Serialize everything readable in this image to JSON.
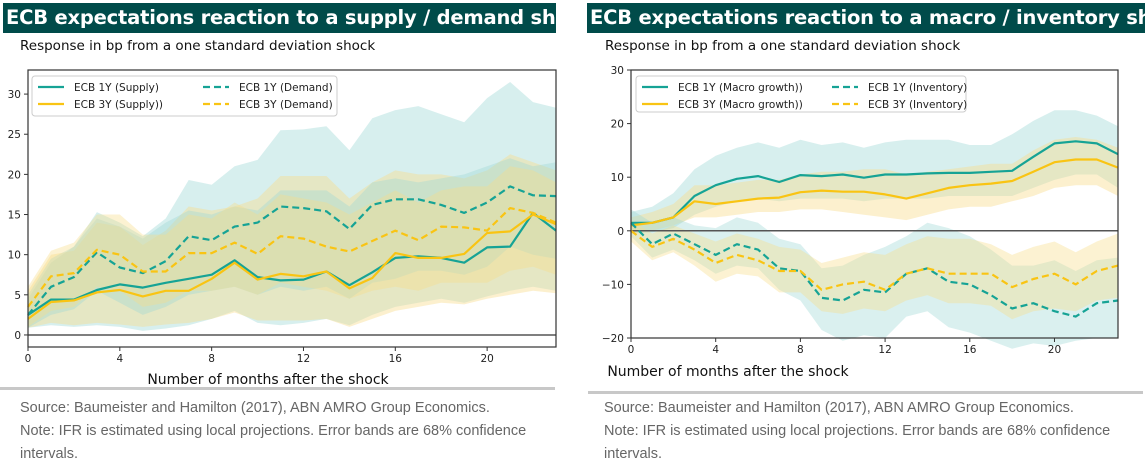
{
  "colors": {
    "header_bg": "#004b4a",
    "teal": "#16a395",
    "yellow": "#f9c413",
    "teal_band": "#9fd8d6",
    "yellow_band": "#f7dc8a",
    "footer_text": "#666666"
  },
  "left": {
    "title": "ECB expectations reaction to a supply / demand shock",
    "subtitle": "Response in bp from a one standard deviation shock",
    "source": "Source: Baumeister and Hamilton (2017), ABN AMRO Group Economics.",
    "note": "Note: IFR is estimated using local projections. Error bands are 68% confidence intervals."
  },
  "right": {
    "title": "ECB expectations reaction to a macro / inventory shock",
    "subtitle": "Response in bp from a one standard deviation shock",
    "source": "Source: Baumeister and Hamilton (2017), ABN AMRO Group Economics.",
    "note": "Note: IFR is estimated using local projections. Error bands are 68% confidence intervals."
  },
  "chart_data": [
    {
      "type": "line",
      "title": "ECB expectations reaction to a supply / demand shock",
      "subtitle": "Response in bp from a one standard deviation shock",
      "xlabel": "Number of months after the shock",
      "ylabel": "",
      "xlim": [
        0,
        23
      ],
      "ylim": [
        -1.5,
        33
      ],
      "xticks": [
        0,
        4,
        8,
        12,
        16,
        20
      ],
      "yticks": [
        0,
        5,
        10,
        15,
        20,
        25,
        30
      ],
      "legend_position": "top-left",
      "legend_columns": 2,
      "grid": false,
      "zero_line": true,
      "x": [
        0,
        1,
        2,
        3,
        4,
        5,
        6,
        7,
        8,
        9,
        10,
        11,
        12,
        13,
        14,
        15,
        16,
        17,
        18,
        19,
        20,
        21,
        22,
        23
      ],
      "series": [
        {
          "name": "ECB 1Y (Supply)",
          "color": "teal",
          "style": "solid",
          "values": [
            2.5,
            4.4,
            4.4,
            5.6,
            6.3,
            5.9,
            6.5,
            7.0,
            7.5,
            9.3,
            7.2,
            6.8,
            6.9,
            7.9,
            6.2,
            7.8,
            9.6,
            9.8,
            9.6,
            9.0,
            10.9,
            11.0,
            15.2,
            13.0
          ],
          "band_lower": [
            0.9,
            1.2,
            1.0,
            1.2,
            1.0,
            0.5,
            0.8,
            1.2,
            2.0,
            3.0,
            1.5,
            1.2,
            1.5,
            2.0,
            1.2,
            2.5,
            3.5,
            4.0,
            4.5,
            4.0,
            4.8,
            5.5,
            6.0,
            5.5
          ],
          "band_upper": [
            4.5,
            9.0,
            11.0,
            15.3,
            14.0,
            12.3,
            14.5,
            19.3,
            18.7,
            21.0,
            21.8,
            25.5,
            25.6,
            26.0,
            23.0,
            27.0,
            28.0,
            28.5,
            27.5,
            26.5,
            29.5,
            31.5,
            29.0,
            28.3
          ]
        },
        {
          "name": "ECB 3Y (Supply))",
          "color": "yellow",
          "style": "solid",
          "values": [
            2.0,
            4.1,
            4.3,
            5.3,
            5.6,
            4.8,
            5.5,
            5.5,
            7.0,
            9.0,
            6.9,
            7.6,
            7.3,
            7.9,
            5.8,
            7.1,
            10.2,
            9.6,
            9.6,
            10.1,
            12.7,
            12.9,
            15.0,
            13.8
          ],
          "band_lower": [
            0.9,
            1.5,
            1.2,
            1.5,
            1.3,
            1.0,
            1.3,
            1.5,
            2.0,
            2.8,
            1.8,
            1.8,
            1.8,
            2.0,
            1.0,
            2.0,
            3.0,
            3.5,
            4.0,
            3.8,
            4.5,
            5.0,
            5.5,
            5.2
          ],
          "band_upper": [
            5.5,
            10.0,
            10.5,
            14.0,
            13.5,
            11.2,
            13.0,
            16.0,
            15.5,
            16.0,
            17.0,
            19.8,
            19.8,
            19.8,
            17.0,
            19.0,
            20.5,
            20.0,
            20.0,
            19.5,
            20.5,
            22.5,
            21.5,
            20.5
          ]
        },
        {
          "name": "ECB 1Y (Demand)",
          "color": "teal",
          "style": "dashed",
          "values": [
            2.5,
            6.0,
            7.2,
            10.3,
            8.4,
            7.7,
            9.2,
            12.3,
            11.8,
            13.5,
            14.0,
            16.0,
            15.8,
            15.4,
            13.2,
            16.2,
            16.9,
            16.9,
            16.2,
            15.2,
            16.5,
            18.5,
            17.4,
            17.3
          ],
          "band_lower": [
            0.9,
            2.5,
            3.2,
            5.5,
            4.0,
            2.5,
            3.5,
            5.0,
            5.5,
            6.0,
            5.0,
            6.0,
            5.5,
            6.0,
            4.5,
            6.5,
            7.0,
            8.0,
            8.0,
            7.5,
            8.5,
            11.0,
            10.0,
            9.5
          ],
          "band_upper": [
            5.0,
            9.5,
            11.0,
            14.5,
            13.5,
            12.0,
            14.0,
            15.5,
            15.0,
            16.0,
            15.5,
            18.0,
            18.0,
            18.0,
            16.0,
            19.0,
            19.5,
            19.0,
            19.5,
            20.0,
            21.0,
            22.0,
            21.0,
            21.5
          ]
        },
        {
          "name": "ECB 3Y (Demand)",
          "color": "yellow",
          "style": "dashed",
          "values": [
            3.5,
            7.3,
            7.7,
            10.6,
            10.0,
            7.9,
            7.9,
            10.2,
            10.2,
            11.5,
            10.1,
            12.3,
            12.0,
            11.0,
            10.4,
            11.7,
            13.0,
            11.8,
            13.5,
            13.4,
            13.0,
            15.8,
            15.2,
            14.0
          ],
          "band_lower": [
            1.0,
            3.0,
            3.5,
            6.0,
            5.5,
            3.5,
            4.0,
            5.5,
            5.5,
            6.0,
            5.0,
            6.5,
            6.0,
            5.5,
            4.5,
            5.5,
            6.0,
            5.5,
            6.5,
            6.5,
            6.5,
            8.0,
            8.5,
            7.5
          ],
          "band_upper": [
            6.0,
            10.5,
            11.5,
            15.0,
            15.0,
            12.5,
            12.5,
            15.0,
            14.5,
            16.5,
            15.0,
            17.5,
            17.0,
            16.5,
            15.0,
            16.5,
            18.0,
            16.5,
            18.0,
            18.5,
            18.5,
            21.0,
            20.5,
            19.0
          ]
        }
      ]
    },
    {
      "type": "line",
      "title": "ECB expectations reaction to a macro / inventory shock",
      "subtitle": "Response in bp from a one standard deviation shock",
      "xlabel": "Number of months after the shock",
      "ylabel": "",
      "xlim": [
        0,
        23
      ],
      "ylim": [
        -20,
        30
      ],
      "xticks": [
        0,
        4,
        8,
        12,
        16,
        20
      ],
      "yticks": [
        -20,
        -10,
        0,
        10,
        20,
        30
      ],
      "legend_position": "top-left",
      "legend_columns": 2,
      "grid": false,
      "zero_line": true,
      "x": [
        0,
        1,
        2,
        3,
        4,
        5,
        6,
        7,
        8,
        9,
        10,
        11,
        12,
        13,
        14,
        15,
        16,
        17,
        18,
        19,
        20,
        21,
        22,
        23
      ],
      "series": [
        {
          "name": "ECB 1Y (Macro growth))",
          "color": "teal",
          "style": "solid",
          "values": [
            1.5,
            1.5,
            2.5,
            6.5,
            8.5,
            9.7,
            10.2,
            9.1,
            10.4,
            10.2,
            10.5,
            9.9,
            10.5,
            10.5,
            10.7,
            10.8,
            10.8,
            11.0,
            11.2,
            13.8,
            16.3,
            16.7,
            16.3,
            14.3
          ],
          "band_lower": [
            -0.5,
            -0.3,
            0.5,
            3.0,
            4.5,
            5.5,
            6.0,
            5.5,
            6.0,
            6.0,
            6.0,
            5.5,
            6.0,
            6.0,
            6.0,
            6.5,
            6.5,
            6.5,
            6.5,
            8.0,
            9.5,
            10.5,
            10.5,
            8.0
          ],
          "band_upper": [
            3.5,
            4.5,
            7.0,
            11.5,
            14.0,
            15.5,
            16.5,
            15.5,
            17.0,
            16.0,
            16.5,
            15.5,
            16.5,
            17.0,
            17.0,
            17.0,
            16.0,
            16.0,
            18.0,
            20.5,
            22.5,
            22.5,
            21.5,
            19.5
          ]
        },
        {
          "name": "ECB 3Y (Macro growth))",
          "color": "yellow",
          "style": "solid",
          "values": [
            1.0,
            1.5,
            2.5,
            5.5,
            5.0,
            5.5,
            6.0,
            6.2,
            7.2,
            7.5,
            7.3,
            7.3,
            6.8,
            6.0,
            7.0,
            8.0,
            8.5,
            8.8,
            9.3,
            11.0,
            12.8,
            13.3,
            13.3,
            11.8
          ],
          "band_lower": [
            -0.5,
            0.0,
            1.0,
            2.5,
            2.5,
            3.0,
            3.5,
            3.5,
            4.0,
            4.0,
            3.5,
            3.0,
            2.5,
            2.0,
            3.0,
            4.0,
            4.5,
            4.5,
            5.5,
            6.5,
            8.0,
            8.5,
            8.5,
            6.5
          ],
          "band_upper": [
            2.5,
            3.5,
            5.0,
            8.5,
            8.5,
            9.0,
            9.5,
            9.5,
            10.5,
            11.0,
            11.0,
            11.5,
            11.5,
            10.5,
            11.0,
            11.5,
            12.0,
            12.5,
            12.5,
            15.0,
            17.0,
            17.5,
            17.0,
            15.5
          ]
        },
        {
          "name": "ECB 1Y (Inventory)",
          "color": "teal",
          "style": "dashed",
          "values": [
            1.5,
            -2.5,
            -0.5,
            -2.5,
            -4.5,
            -2.5,
            -3.5,
            -7.0,
            -7.5,
            -12.5,
            -13.0,
            -11.0,
            -11.5,
            -8.0,
            -7.0,
            -9.5,
            -10.0,
            -12.0,
            -14.5,
            -13.5,
            -15.0,
            -16.0,
            -13.5,
            -13.0
          ],
          "band_lower": [
            -1.0,
            -5.0,
            -3.5,
            -5.5,
            -8.0,
            -6.5,
            -7.0,
            -11.0,
            -13.0,
            -18.5,
            -20.5,
            -19.5,
            -20.0,
            -16.0,
            -15.0,
            -18.0,
            -19.0,
            -20.5,
            -22.0,
            -21.0,
            -21.5,
            -20.5,
            -20.0,
            -20.0
          ],
          "band_upper": [
            4.0,
            1.5,
            2.5,
            1.0,
            0.5,
            2.5,
            1.5,
            -1.5,
            -2.5,
            -7.0,
            -6.5,
            -4.5,
            -3.0,
            -1.0,
            1.5,
            0.5,
            -1.0,
            -3.5,
            -6.5,
            -6.5,
            -5.5,
            -7.5,
            -5.5,
            -5.0
          ]
        },
        {
          "name": "ECB 3Y (Inventory)",
          "color": "yellow",
          "style": "dashed",
          "values": [
            0.0,
            -3.0,
            -1.5,
            -3.5,
            -6.0,
            -4.5,
            -5.5,
            -7.5,
            -7.5,
            -11.0,
            -10.0,
            -9.5,
            -11.0,
            -8.0,
            -7.0,
            -8.0,
            -8.0,
            -8.0,
            -10.5,
            -9.0,
            -8.0,
            -10.0,
            -7.5,
            -6.5
          ],
          "band_lower": [
            -2.0,
            -5.5,
            -4.0,
            -6.5,
            -9.5,
            -8.0,
            -8.5,
            -11.5,
            -11.5,
            -15.0,
            -15.5,
            -14.5,
            -15.0,
            -13.0,
            -12.0,
            -13.5,
            -13.5,
            -14.0,
            -16.5,
            -15.0,
            -14.5,
            -15.0,
            -13.0,
            -12.5
          ],
          "band_upper": [
            2.0,
            -0.5,
            1.0,
            -0.5,
            -2.0,
            -0.5,
            -1.5,
            -3.0,
            -3.5,
            -6.0,
            -5.0,
            -4.0,
            -4.5,
            -2.5,
            -1.0,
            -1.5,
            -1.5,
            -2.5,
            -4.5,
            -3.0,
            -2.0,
            -4.0,
            -2.0,
            -0.5
          ]
        }
      ]
    }
  ]
}
